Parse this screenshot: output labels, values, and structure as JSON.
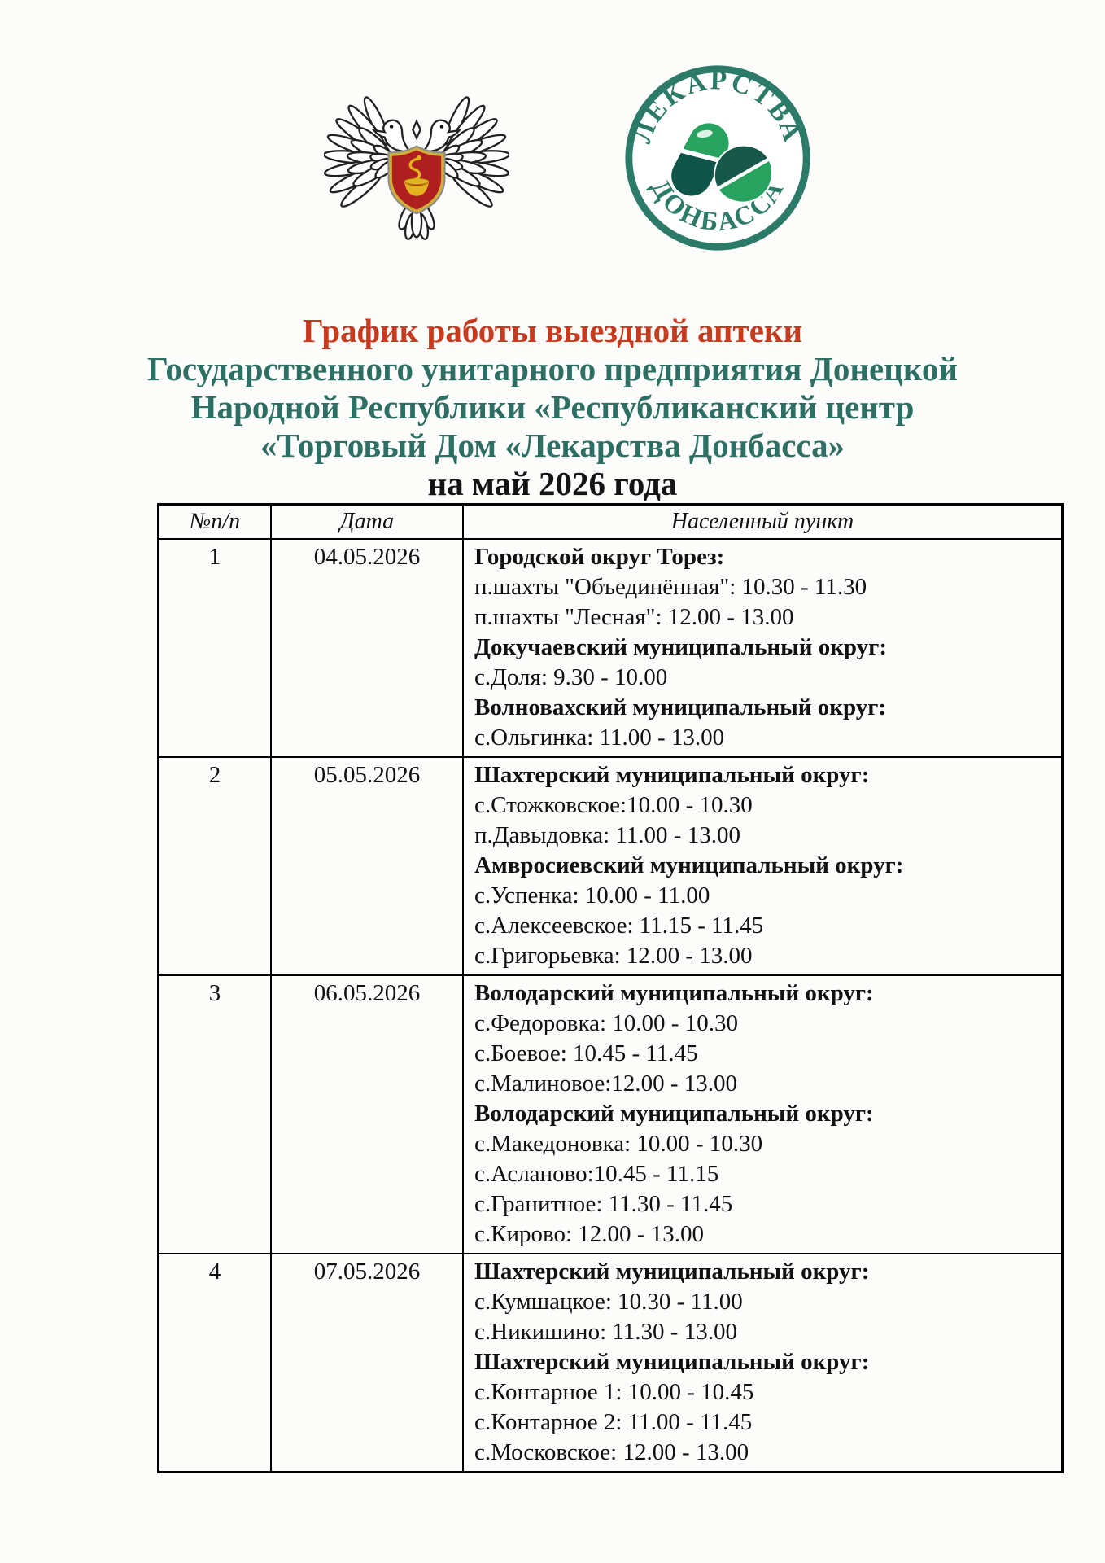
{
  "header": {
    "title_red": "График работы выездной аптеки",
    "org_lines": [
      "Государственного унитарного предприятия Донецкой",
      "Народной Республики «Республиканский центр",
      "«Торговый Дом «Лекарства Донбасса»"
    ],
    "period": "на май 2026 года"
  },
  "logos": {
    "round_logo": {
      "top_text": "ЛЕКАРСТВА",
      "bottom_text": "ДОНБАССА"
    }
  },
  "colors": {
    "accent_red": "#c63b1e",
    "accent_green": "#2e6f63",
    "logo_green": "#2c7a68",
    "logo_pill_light": "#28a35f",
    "logo_pill_dark": "#0f5448",
    "shield_red": "#b01f1f",
    "shield_gold": "#d4af37"
  },
  "table": {
    "headers": [
      "№п/п",
      "Дата",
      "Населенный пункт"
    ],
    "rows": [
      {
        "num": "1",
        "date": "04.05.2026",
        "lines": [
          {
            "text": "Городской округ Торез:",
            "bold": true
          },
          {
            "text": "п.шахты \"Объединённая\": 10.30 - 11.30",
            "bold": false
          },
          {
            "text": "п.шахты \"Лесная\": 12.00 - 13.00",
            "bold": false
          },
          {
            "text": "Докучаевский муниципальный округ:",
            "bold": true
          },
          {
            "text": "с.Доля: 9.30 - 10.00",
            "bold": false
          },
          {
            "text": "Волновахский муниципальный округ:",
            "bold": true
          },
          {
            "text": "с.Ольгинка: 11.00 - 13.00",
            "bold": false
          }
        ]
      },
      {
        "num": "2",
        "date": "05.05.2026",
        "lines": [
          {
            "text": "Шахтерский муниципальный округ:",
            "bold": true
          },
          {
            "text": "с.Стожковское:10.00 - 10.30",
            "bold": false
          },
          {
            "text": "п.Давыдовка: 11.00 - 13.00",
            "bold": false
          },
          {
            "text": "Амвросиевский муниципальный округ:",
            "bold": true
          },
          {
            "text": "с.Успенка: 10.00 - 11.00",
            "bold": false
          },
          {
            "text": "с.Алексеевское: 11.15 - 11.45",
            "bold": false
          },
          {
            "text": "с.Григорьевка: 12.00 - 13.00",
            "bold": false
          }
        ]
      },
      {
        "num": "3",
        "date": "06.05.2026",
        "lines": [
          {
            "text": "Володарский муниципальный округ:",
            "bold": true
          },
          {
            "text": "с.Федоровка: 10.00 - 10.30",
            "bold": false
          },
          {
            "text": "с.Боевое: 10.45 - 11.45",
            "bold": false
          },
          {
            "text": "с.Малиновое:12.00 - 13.00",
            "bold": false
          },
          {
            "text": "Володарский муниципальный округ:",
            "bold": true
          },
          {
            "text": "с.Македоновка: 10.00 - 10.30",
            "bold": false
          },
          {
            "text": "с.Асланово:10.45 - 11.15",
            "bold": false
          },
          {
            "text": "с.Гранитное: 11.30 - 11.45",
            "bold": false
          },
          {
            "text": "с.Кирово:  12.00 - 13.00",
            "bold": false
          }
        ]
      },
      {
        "num": "4",
        "date": "07.05.2026",
        "lines": [
          {
            "text": "Шахтерский муниципальный округ:",
            "bold": true
          },
          {
            "text": "с.Кумшацкое: 10.30 - 11.00",
            "bold": false
          },
          {
            "text": "с.Никишино: 11.30 - 13.00",
            "bold": false
          },
          {
            "text": "Шахтерский муниципальный округ:",
            "bold": true
          },
          {
            "text": "с.Контарное 1: 10.00 - 10.45",
            "bold": false
          },
          {
            "text": "с.Контарное 2: 11.00 - 11.45",
            "bold": false
          },
          {
            "text": "с.Московское: 12.00 - 13.00",
            "bold": false
          }
        ]
      }
    ]
  }
}
